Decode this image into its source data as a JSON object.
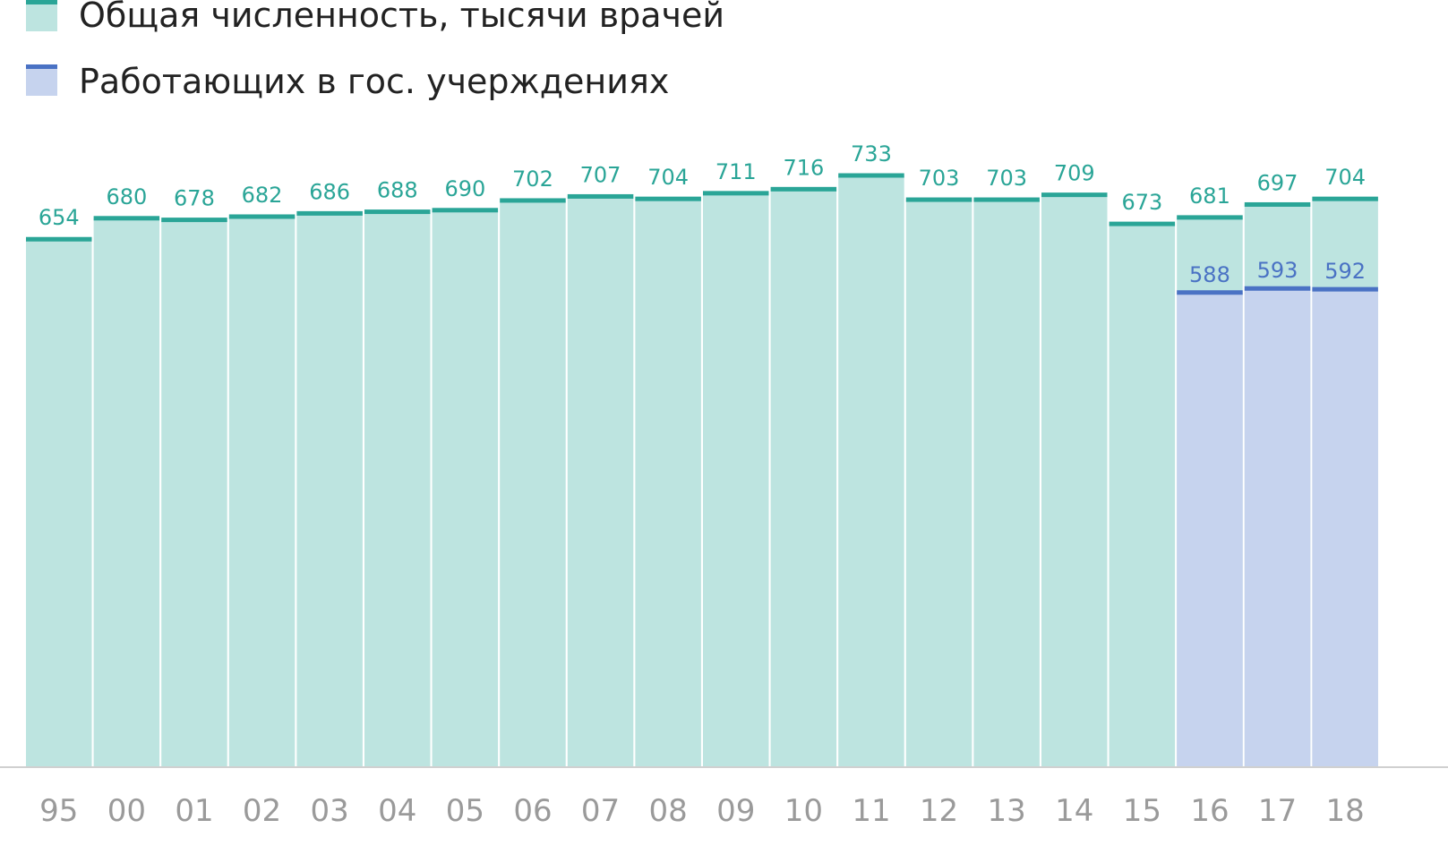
{
  "chart_data": {
    "type": "bar",
    "categories": [
      "95",
      "00",
      "01",
      "02",
      "03",
      "04",
      "05",
      "06",
      "07",
      "08",
      "09",
      "10",
      "11",
      "12",
      "13",
      "14",
      "15",
      "16",
      "17",
      "18"
    ],
    "series": [
      {
        "name": "Общая численность, тысячи врачей",
        "values": [
          654,
          680,
          678,
          682,
          686,
          688,
          690,
          702,
          707,
          704,
          711,
          716,
          733,
          703,
          703,
          709,
          673,
          681,
          697,
          704
        ]
      },
      {
        "name": "Работающих в гос. учерждениях",
        "values": [
          null,
          null,
          null,
          null,
          null,
          null,
          null,
          null,
          null,
          null,
          null,
          null,
          null,
          null,
          null,
          null,
          null,
          588,
          593,
          592
        ]
      }
    ],
    "ylim": [
      0,
      733
    ],
    "grid": false,
    "legend_position": "top-left",
    "title": "",
    "xlabel": "",
    "ylabel": ""
  },
  "colors": {
    "total_fill": "#bde4e0",
    "total_line": "#2aa597",
    "state_fill": "#c6d3ee",
    "state_line": "#4a72c4",
    "axis": "#d0d0d0",
    "tick_text": "#9a9a9a",
    "legend_text": "#222222"
  }
}
